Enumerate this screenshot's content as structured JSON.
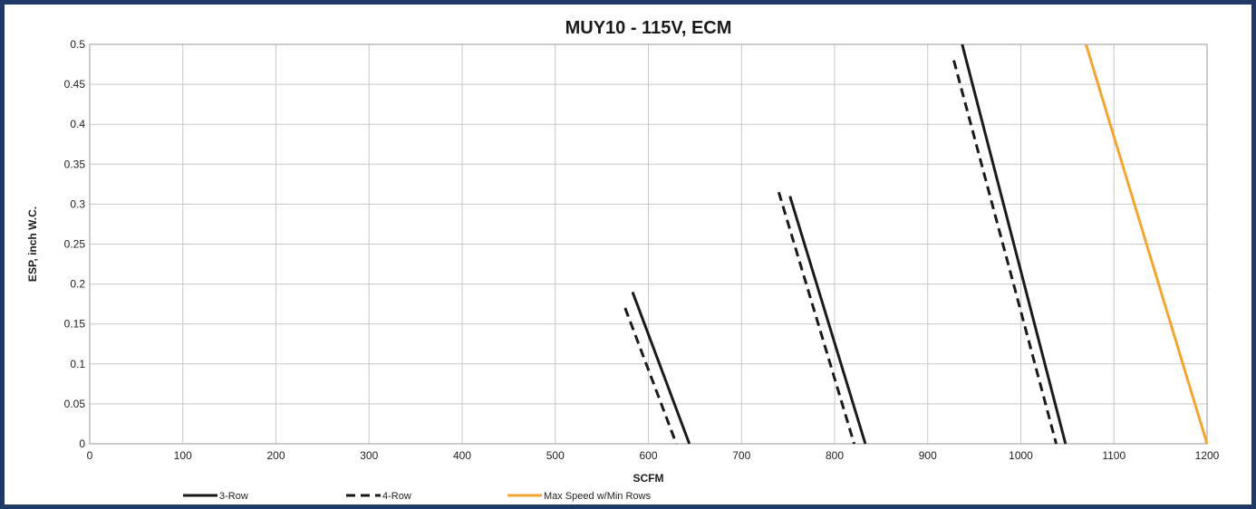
{
  "chart_data": {
    "type": "line",
    "title": "MUY10 - 115V, ECM",
    "xlabel": "SCFM",
    "ylabel": "ESP, inch W.C.",
    "xlim": [
      0,
      1200
    ],
    "ylim": [
      0,
      0.5
    ],
    "xticks": [
      0,
      100,
      200,
      300,
      400,
      500,
      600,
      700,
      800,
      900,
      1000,
      1100,
      1200
    ],
    "yticks": [
      0,
      0.05,
      0.1,
      0.15,
      0.2,
      0.25,
      0.3,
      0.35,
      0.4,
      0.45,
      0.5
    ],
    "grid": true,
    "legend_position": "bottom",
    "series": [
      {
        "name": "3-Row",
        "color": "#1a1a1a",
        "dash": "solid",
        "segments": [
          [
            [
              583,
              0.19
            ],
            [
              644,
              0
            ]
          ],
          [
            [
              752,
              0.31
            ],
            [
              833,
              0
            ]
          ],
          [
            [
              937,
              0.5
            ],
            [
              1048,
              0
            ]
          ]
        ]
      },
      {
        "name": "4-Row",
        "color": "#1a1a1a",
        "dash": "dashed",
        "segments": [
          [
            [
              575,
              0.17
            ],
            [
              630,
              0
            ]
          ],
          [
            [
              740,
              0.315
            ],
            [
              821,
              0
            ]
          ],
          [
            [
              928,
              0.48
            ],
            [
              1038,
              0
            ]
          ]
        ]
      },
      {
        "name": "Max Speed w/Min Rows",
        "color": "#f4a531",
        "dash": "solid",
        "segments": [
          [
            [
              1070,
              0.5
            ],
            [
              1200,
              0
            ]
          ]
        ]
      }
    ]
  }
}
